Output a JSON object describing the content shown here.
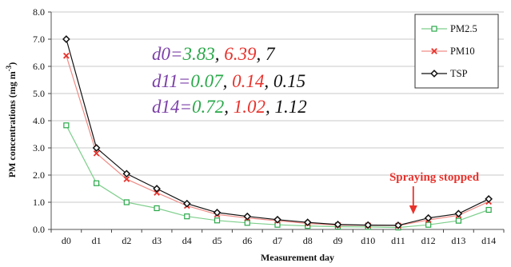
{
  "chart_data": {
    "type": "line",
    "title": "",
    "xlabel": "Measurement day",
    "ylabel_main": "PM concentrations (mg m",
    "ylabel_sup": "-3",
    "ylabel_tail": ")",
    "ylim": [
      0,
      8
    ],
    "yticks": [
      "0.0",
      "1.0",
      "2.0",
      "3.0",
      "4.0",
      "5.0",
      "6.0",
      "7.0",
      "8.0"
    ],
    "grid": "horizontal",
    "legend_position": "top-right",
    "categories": [
      "d0",
      "d1",
      "d2",
      "d3",
      "d4",
      "d5",
      "d6",
      "d7",
      "d8",
      "d9",
      "d10",
      "d11",
      "d12",
      "d13",
      "d14"
    ],
    "series": [
      {
        "name": "PM2.5",
        "color": "#2aa84a",
        "line_color": "#7ecf8c",
        "marker": "square",
        "values": [
          3.83,
          1.7,
          1.0,
          0.78,
          0.48,
          0.33,
          0.24,
          0.17,
          0.13,
          0.1,
          0.09,
          0.07,
          0.17,
          0.32,
          0.72
        ]
      },
      {
        "name": "PM10",
        "color": "#e8322c",
        "line_color": "#f08c86",
        "marker": "x",
        "values": [
          6.39,
          2.8,
          1.85,
          1.35,
          0.87,
          0.55,
          0.42,
          0.32,
          0.22,
          0.16,
          0.15,
          0.14,
          0.35,
          0.52,
          1.02
        ]
      },
      {
        "name": "TSP",
        "color": "#111111",
        "line_color": "#111111",
        "marker": "diamond",
        "values": [
          7.0,
          3.0,
          2.05,
          1.5,
          0.95,
          0.62,
          0.48,
          0.36,
          0.26,
          0.18,
          0.16,
          0.15,
          0.42,
          0.58,
          1.12
        ]
      }
    ],
    "annotations": [
      {
        "parts": [
          {
            "text": "d0=",
            "color": "#7b3fa8"
          },
          {
            "text": "3.83",
            "color": "#2aa84a"
          },
          {
            "text": ", ",
            "color": "#111111"
          },
          {
            "text": "6.39",
            "color": "#e8322c"
          },
          {
            "text": ", 7",
            "color": "#111111"
          }
        ]
      },
      {
        "parts": [
          {
            "text": "d11=",
            "color": "#7b3fa8"
          },
          {
            "text": "0.07",
            "color": "#2aa84a"
          },
          {
            "text": ", ",
            "color": "#111111"
          },
          {
            "text": "0.14",
            "color": "#e8322c"
          },
          {
            "text": ", 0.15",
            "color": "#111111"
          }
        ]
      },
      {
        "parts": [
          {
            "text": "d14=",
            "color": "#7b3fa8"
          },
          {
            "text": "0.72",
            "color": "#2aa84a"
          },
          {
            "text": ", ",
            "color": "#111111"
          },
          {
            "text": "1.02",
            "color": "#e8322c"
          },
          {
            "text": ", 1.12",
            "color": "#111111"
          }
        ]
      }
    ],
    "callout": {
      "text": "Spraying stopped",
      "color": "#e8322c",
      "arrow_between": [
        "d11",
        "d12"
      ]
    }
  }
}
